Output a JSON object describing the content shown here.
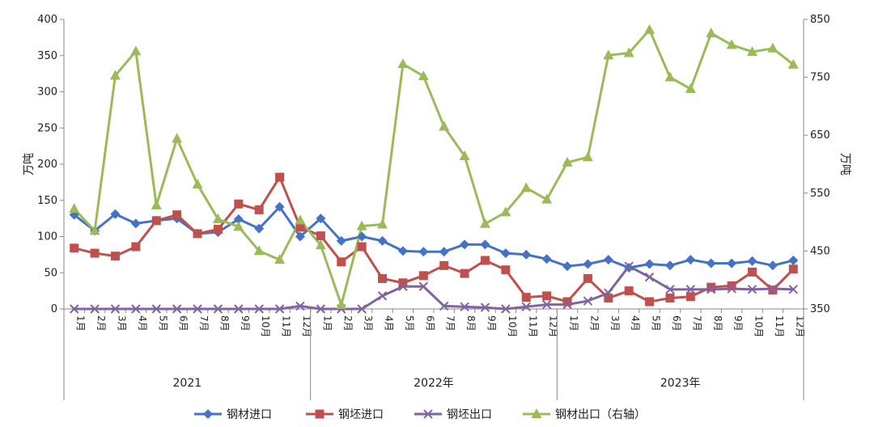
{
  "chart_data": {
    "type": "line",
    "title": "",
    "ylabel_left": "万吨",
    "ylabel_right": "万吨",
    "ylim_left": [
      0,
      400
    ],
    "yticks_left": [
      0,
      50,
      100,
      150,
      200,
      250,
      300,
      350,
      400
    ],
    "ylim_right": [
      350,
      850
    ],
    "yticks_right": [
      350,
      450,
      550,
      650,
      750,
      850
    ],
    "grid": false,
    "legend_position": "bottom",
    "months": [
      "1月",
      "2月",
      "3月",
      "4月",
      "5月",
      "6月",
      "7月",
      "8月",
      "9月",
      "10月",
      "11月",
      "12月"
    ],
    "years": [
      "2021",
      "2022年",
      "2023年"
    ],
    "series": [
      {
        "name": "钢材进口",
        "axis": "left",
        "color": "#4472C4",
        "marker": "diamond",
        "values": [
          130,
          108,
          131,
          118,
          122,
          125,
          104,
          106,
          124,
          111,
          141,
          100,
          125,
          94,
          100,
          94,
          80,
          79,
          79,
          89,
          89,
          77,
          75,
          69,
          59,
          62,
          68,
          57,
          62,
          60,
          68,
          63,
          63,
          66,
          60,
          67
        ]
      },
      {
        "name": "钢坯进口",
        "axis": "left",
        "color": "#C0504D",
        "marker": "square",
        "values": [
          84,
          77,
          73,
          86,
          122,
          130,
          104,
          110,
          145,
          137,
          182,
          113,
          101,
          65,
          86,
          42,
          36,
          46,
          60,
          49,
          67,
          54,
          16,
          18,
          10,
          42,
          15,
          25,
          10,
          15,
          17,
          30,
          32,
          51,
          26,
          55
        ]
      },
      {
        "name": "钢坯出口",
        "axis": "left",
        "color": "#8064A2",
        "marker": "x",
        "values": [
          0,
          0,
          0,
          0,
          0,
          0,
          0,
          0,
          0,
          0,
          0,
          4,
          0,
          0,
          0,
          18,
          31,
          31,
          4,
          3,
          2,
          0,
          3,
          6,
          6,
          11,
          22,
          59,
          44,
          27,
          27,
          27,
          28,
          27,
          28,
          27
        ]
      },
      {
        "name": "钢材出口（右轴）",
        "axis": "right",
        "color": "#9BBB59",
        "marker": "triangle",
        "values": [
          523,
          485,
          753,
          795,
          529,
          644,
          565,
          505,
          492,
          450,
          435,
          503,
          460,
          357,
          493,
          496,
          773,
          752,
          665,
          614,
          497,
          517,
          559,
          539,
          603,
          612,
          788,
          792,
          832,
          750,
          730,
          826,
          806,
          794,
          800,
          772
        ]
      }
    ]
  }
}
